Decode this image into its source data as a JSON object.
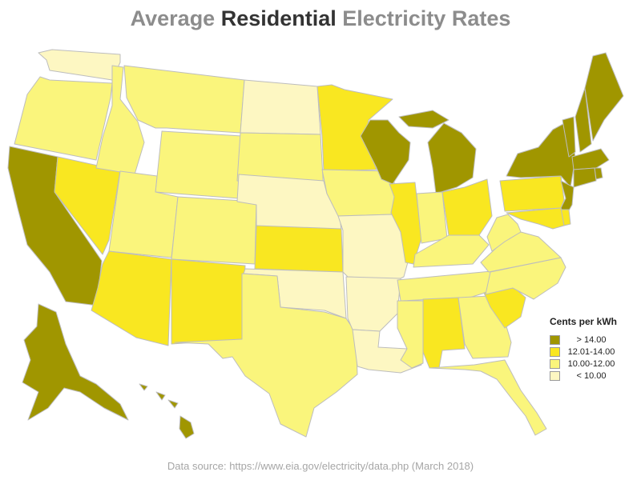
{
  "title": {
    "prefix": "Average ",
    "emphasis": "Residential",
    "suffix": " Electricity Rates"
  },
  "legend": {
    "title": "Cents per kWh",
    "items": [
      {
        "label": "> 14.00",
        "color": "#a09600"
      },
      {
        "label": "12.01-14.00",
        "color": "#f9e721"
      },
      {
        "label": "10.00-12.00",
        "color": "#faf57c"
      },
      {
        "label": "< 10.00",
        "color": "#fdf7c2"
      }
    ]
  },
  "source": "Data source: https://www.eia.gov/electricity/data.php (March 2018)",
  "colors": {
    "outline": "#bdbdbd",
    "title_gray": "#8c8c8c",
    "title_dark": "#333333"
  },
  "chart_data": {
    "type": "choropleth",
    "unit": "Cents per kWh",
    "category_by_state": {
      "WA": "< 10.00",
      "OR": "10.00-12.00",
      "CA": "> 14.00",
      "NV": "12.01-14.00",
      "ID": "10.00-12.00",
      "MT": "10.00-12.00",
      "WY": "10.00-12.00",
      "UT": "10.00-12.00",
      "CO": "10.00-12.00",
      "AZ": "12.01-14.00",
      "NM": "12.01-14.00",
      "ND": "< 10.00",
      "SD": "10.00-12.00",
      "NE": "< 10.00",
      "KS": "12.01-14.00",
      "OK": "< 10.00",
      "TX": "10.00-12.00",
      "MN": "12.01-14.00",
      "IA": "10.00-12.00",
      "MO": "< 10.00",
      "AR": "< 10.00",
      "LA": "< 10.00",
      "WI": "> 14.00",
      "IL": "12.01-14.00",
      "MI": "> 14.00",
      "IN": "10.00-12.00",
      "OH": "12.01-14.00",
      "KY": "10.00-12.00",
      "TN": "10.00-12.00",
      "MS": "10.00-12.00",
      "AL": "12.01-14.00",
      "GA": "10.00-12.00",
      "FL": "10.00-12.00",
      "SC": "12.01-14.00",
      "NC": "10.00-12.00",
      "VA": "10.00-12.00",
      "WV": "10.00-12.00",
      "PA": "12.01-14.00",
      "NY": "> 14.00",
      "VT": "> 14.00",
      "NH": "> 14.00",
      "ME": "> 14.00",
      "MA": "> 14.00",
      "RI": "> 14.00",
      "CT": "> 14.00",
      "NJ": "> 14.00",
      "DE": "12.01-14.00",
      "MD": "12.01-14.00",
      "AK": "> 14.00",
      "HI": "> 14.00"
    }
  }
}
